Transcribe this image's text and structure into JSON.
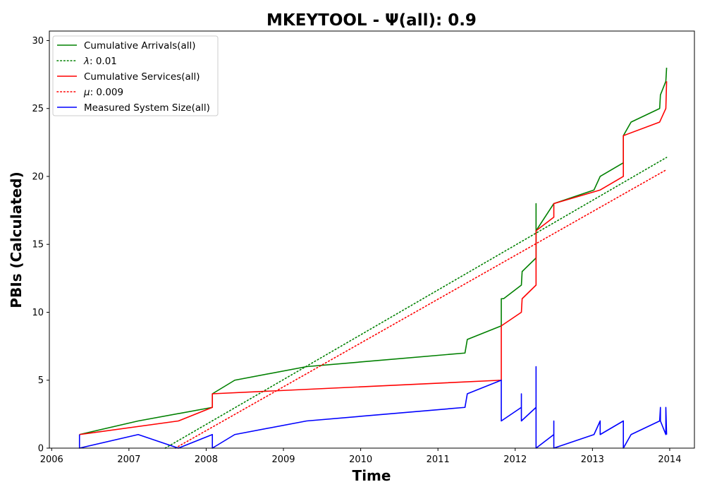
{
  "chart_data": {
    "type": "line",
    "title": "MKEYTOOL -  Ψ(all): 0.9",
    "xlabel": "Time",
    "ylabel": "PBIs (Calculated)",
    "xlim": [
      2005.97,
      2014.32
    ],
    "ylim": [
      0,
      30.7
    ],
    "xticks": [
      2006,
      2007,
      2008,
      2009,
      2010,
      2011,
      2012,
      2013,
      2014
    ],
    "yticks": [
      0,
      5,
      10,
      15,
      20,
      25,
      30
    ],
    "grid": false,
    "legend_position": "top-left",
    "series": [
      {
        "name": "Cumulative Arrivals(all)",
        "legend_label": "Cumulative Arrivals(all)",
        "color": "#008000",
        "style": "solid",
        "points": [
          [
            2006.36,
            1
          ],
          [
            2007.12,
            2
          ],
          [
            2008.08,
            3
          ],
          [
            2008.08,
            4
          ],
          [
            2008.37,
            5
          ],
          [
            2009.3,
            6
          ],
          [
            2011.35,
            7
          ],
          [
            2011.38,
            8
          ],
          [
            2011.82,
            9
          ],
          [
            2011.82,
            11
          ],
          [
            2011.85,
            11
          ],
          [
            2012.08,
            12
          ],
          [
            2012.09,
            13
          ],
          [
            2012.27,
            14
          ],
          [
            2012.27,
            18
          ],
          [
            2012.27,
            16
          ],
          [
            2012.5,
            18
          ],
          [
            2013.02,
            19
          ],
          [
            2013.1,
            20
          ],
          [
            2013.4,
            21
          ],
          [
            2013.4,
            23
          ],
          [
            2013.5,
            24
          ],
          [
            2013.87,
            25
          ],
          [
            2013.88,
            26
          ],
          [
            2013.95,
            27
          ],
          [
            2013.96,
            28
          ]
        ]
      },
      {
        "name": "λ: 0.01",
        "legend_prefix": "λ",
        "legend_value": ": 0.01",
        "color": "#008000",
        "style": "dotted",
        "points": [
          [
            2007.47,
            0
          ],
          [
            2013.96,
            21.4
          ]
        ]
      },
      {
        "name": "Cumulative Services(all)",
        "legend_label": "Cumulative Services(all)",
        "color": "#ff0000",
        "style": "solid",
        "points": [
          [
            2006.36,
            1
          ],
          [
            2007.64,
            2
          ],
          [
            2008.08,
            3
          ],
          [
            2008.08,
            4
          ],
          [
            2011.82,
            5
          ],
          [
            2011.82,
            9
          ],
          [
            2012.08,
            10
          ],
          [
            2012.09,
            11
          ],
          [
            2012.27,
            12
          ],
          [
            2012.27,
            16
          ],
          [
            2012.5,
            17
          ],
          [
            2012.5,
            18
          ],
          [
            2013.1,
            19
          ],
          [
            2013.4,
            20
          ],
          [
            2013.4,
            23
          ],
          [
            2013.87,
            24
          ],
          [
            2013.95,
            25
          ],
          [
            2013.96,
            27
          ]
        ]
      },
      {
        "name": "μ: 0.009",
        "legend_prefix": "μ",
        "legend_value": ": 0.009",
        "color": "#ff0000",
        "style": "dotted",
        "points": [
          [
            2007.6,
            0
          ],
          [
            2013.96,
            20.5
          ]
        ]
      },
      {
        "name": "Measured System Size(all)",
        "legend_label": "Measured System Size(all)",
        "color": "#0000ff",
        "style": "solid",
        "points": [
          [
            2006.36,
            1
          ],
          [
            2006.36,
            0
          ],
          [
            2007.12,
            1
          ],
          [
            2007.64,
            0
          ],
          [
            2008.08,
            1
          ],
          [
            2008.08,
            0
          ],
          [
            2008.37,
            1
          ],
          [
            2009.3,
            2
          ],
          [
            2011.35,
            3
          ],
          [
            2011.38,
            4
          ],
          [
            2011.82,
            5
          ],
          [
            2011.82,
            3
          ],
          [
            2011.82,
            2
          ],
          [
            2012.08,
            3
          ],
          [
            2012.08,
            4
          ],
          [
            2012.08,
            2
          ],
          [
            2012.27,
            3
          ],
          [
            2012.27,
            6
          ],
          [
            2012.27,
            0
          ],
          [
            2012.5,
            1
          ],
          [
            2012.5,
            2
          ],
          [
            2012.5,
            0
          ],
          [
            2013.02,
            1
          ],
          [
            2013.1,
            2
          ],
          [
            2013.1,
            1
          ],
          [
            2013.4,
            2
          ],
          [
            2013.4,
            0
          ],
          [
            2013.5,
            1
          ],
          [
            2013.87,
            2
          ],
          [
            2013.88,
            3
          ],
          [
            2013.88,
            2
          ],
          [
            2013.95,
            1
          ],
          [
            2013.95,
            3
          ],
          [
            2013.96,
            1
          ]
        ]
      }
    ]
  }
}
